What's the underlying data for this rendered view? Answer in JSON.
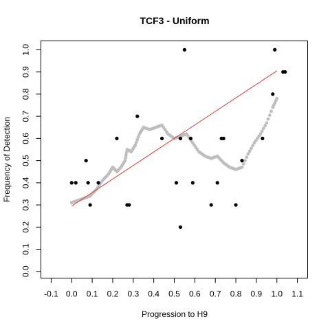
{
  "chart_data": {
    "type": "scatter",
    "title": "TCF3 - Uniform",
    "xlabel": "Progression to H9",
    "ylabel": "Frequency of Detection",
    "xlim": [
      -0.15,
      1.15
    ],
    "ylim": [
      -0.03,
      1.04
    ],
    "x_ticks": [
      "-0.1",
      "0.0",
      "0.1",
      "0.2",
      "0.3",
      "0.4",
      "0.5",
      "0.6",
      "0.7",
      "0.8",
      "0.9",
      "1.0",
      "1.1"
    ],
    "y_ticks": [
      "0.0",
      "0.1",
      "0.2",
      "0.3",
      "0.4",
      "0.5",
      "0.6",
      "0.7",
      "0.8",
      "0.9",
      "1.0"
    ],
    "grid": false,
    "legend": "none",
    "colors": {
      "observed": "#000000",
      "smoothed": "#bebebe",
      "fit": "#e8362f"
    },
    "series": [
      {
        "kind": "points",
        "points": [
          [
            0.0,
            0.4
          ],
          [
            0.02,
            0.4
          ],
          [
            0.07,
            0.5
          ],
          [
            0.08,
            0.4
          ],
          [
            0.09,
            0.3
          ],
          [
            0.13,
            0.4
          ],
          [
            0.22,
            0.6
          ],
          [
            0.27,
            0.3
          ],
          [
            0.28,
            0.3
          ],
          [
            0.32,
            0.7
          ],
          [
            0.44,
            0.6
          ],
          [
            0.51,
            0.4
          ],
          [
            0.53,
            0.6
          ],
          [
            0.53,
            0.2
          ],
          [
            0.55,
            1.0
          ],
          [
            0.58,
            0.6
          ],
          [
            0.59,
            0.4
          ],
          [
            0.68,
            0.3
          ],
          [
            0.71,
            0.4
          ],
          [
            0.73,
            0.6
          ],
          [
            0.74,
            0.6
          ],
          [
            0.8,
            0.3
          ],
          [
            0.83,
            0.5
          ],
          [
            0.93,
            0.6
          ],
          [
            0.98,
            0.8
          ],
          [
            0.99,
            1.0
          ],
          [
            1.03,
            0.9
          ],
          [
            1.04,
            0.9
          ]
        ]
      },
      {
        "kind": "smooth",
        "points": [
          [
            0.0,
            0.31
          ],
          [
            0.03,
            0.32
          ],
          [
            0.06,
            0.33
          ],
          [
            0.09,
            0.34
          ],
          [
            0.12,
            0.37
          ],
          [
            0.15,
            0.41
          ],
          [
            0.18,
            0.44
          ],
          [
            0.2,
            0.47
          ],
          [
            0.22,
            0.45
          ],
          [
            0.24,
            0.47
          ],
          [
            0.26,
            0.5
          ],
          [
            0.27,
            0.55
          ],
          [
            0.29,
            0.54
          ],
          [
            0.31,
            0.57
          ],
          [
            0.33,
            0.62
          ],
          [
            0.35,
            0.65
          ],
          [
            0.38,
            0.64
          ],
          [
            0.41,
            0.65
          ],
          [
            0.44,
            0.66
          ],
          [
            0.47,
            0.62
          ],
          [
            0.5,
            0.6
          ],
          [
            0.53,
            0.61
          ],
          [
            0.56,
            0.62
          ],
          [
            0.59,
            0.58
          ],
          [
            0.62,
            0.54
          ],
          [
            0.65,
            0.52
          ],
          [
            0.68,
            0.51
          ],
          [
            0.71,
            0.52
          ],
          [
            0.74,
            0.49
          ],
          [
            0.77,
            0.47
          ],
          [
            0.8,
            0.46
          ],
          [
            0.83,
            0.47
          ],
          [
            0.86,
            0.53
          ],
          [
            0.89,
            0.58
          ],
          [
            0.92,
            0.62
          ],
          [
            0.95,
            0.67
          ],
          [
            0.98,
            0.74
          ],
          [
            1.0,
            0.78
          ]
        ]
      },
      {
        "kind": "fit",
        "points": [
          [
            0.0,
            0.295
          ],
          [
            1.0,
            0.905
          ]
        ]
      }
    ]
  }
}
